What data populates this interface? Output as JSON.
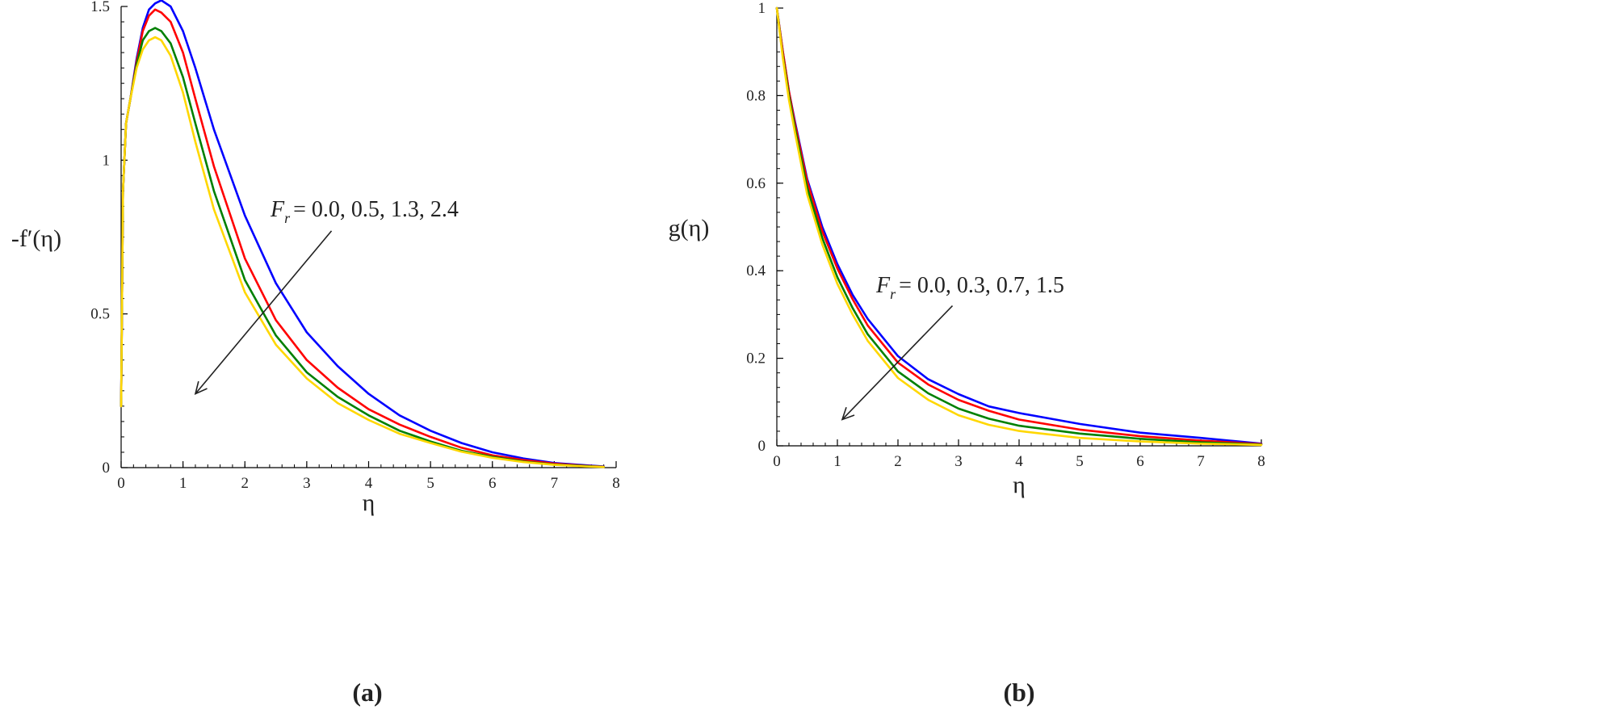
{
  "chart_data": [
    {
      "type": "line",
      "panel_label": "(a)",
      "xlabel": "η",
      "ylabel": "-f′(η)",
      "xlim": [
        0,
        8
      ],
      "ylim": [
        0,
        1.5
      ],
      "xticks": [
        "0",
        "1",
        "2",
        "3",
        "4",
        "5",
        "6",
        "7",
        "8"
      ],
      "yticks": [
        "0",
        "0.5",
        "1",
        "1.5"
      ],
      "grid": false,
      "legend": "none",
      "annotation": {
        "var": "F",
        "sub": "r",
        "values": "= 0.0, 0.5, 1.3, 2.4"
      },
      "arrow": {
        "from": [
          3.4,
          0.77
        ],
        "to": [
          1.2,
          0.24
        ]
      },
      "x": [
        0,
        0.03,
        0.08,
        0.15,
        0.25,
        0.35,
        0.45,
        0.55,
        0.65,
        0.8,
        1.0,
        1.2,
        1.5,
        2.0,
        2.5,
        3.0,
        3.5,
        4.0,
        4.5,
        5.0,
        5.5,
        6.0,
        6.5,
        7.0,
        7.5,
        7.8
      ],
      "series": [
        {
          "color": "#0000ff",
          "values": [
            0.2,
            0.9,
            1.12,
            1.2,
            1.33,
            1.43,
            1.49,
            1.51,
            1.52,
            1.5,
            1.42,
            1.3,
            1.1,
            0.82,
            0.6,
            0.44,
            0.33,
            0.24,
            0.17,
            0.12,
            0.08,
            0.05,
            0.03,
            0.015,
            0.008,
            0.004
          ]
        },
        {
          "color": "#ff0000",
          "values": [
            0.2,
            0.9,
            1.12,
            1.2,
            1.32,
            1.42,
            1.47,
            1.49,
            1.48,
            1.45,
            1.35,
            1.2,
            0.98,
            0.68,
            0.48,
            0.35,
            0.26,
            0.19,
            0.14,
            0.1,
            0.065,
            0.04,
            0.025,
            0.013,
            0.006,
            0.003
          ]
        },
        {
          "color": "#008000",
          "values": [
            0.2,
            0.9,
            1.12,
            1.2,
            1.31,
            1.39,
            1.42,
            1.43,
            1.42,
            1.38,
            1.27,
            1.12,
            0.9,
            0.61,
            0.43,
            0.31,
            0.23,
            0.17,
            0.12,
            0.085,
            0.055,
            0.035,
            0.02,
            0.01,
            0.005,
            0.002
          ]
        },
        {
          "color": "#ffd700",
          "values": [
            0.2,
            0.9,
            1.12,
            1.2,
            1.3,
            1.36,
            1.39,
            1.4,
            1.39,
            1.34,
            1.22,
            1.06,
            0.84,
            0.57,
            0.4,
            0.29,
            0.21,
            0.155,
            0.11,
            0.08,
            0.052,
            0.032,
            0.018,
            0.009,
            0.004,
            0.002
          ]
        }
      ]
    },
    {
      "type": "line",
      "panel_label": "(b)",
      "xlabel": "η",
      "ylabel": "g(η)",
      "xlim": [
        0,
        8
      ],
      "ylim": [
        0,
        1
      ],
      "xticks": [
        "0",
        "1",
        "2",
        "3",
        "4",
        "5",
        "6",
        "7",
        "8"
      ],
      "yticks": [
        "0",
        "0.2",
        "0.4",
        "0.6",
        "0.8",
        "1"
      ],
      "grid": false,
      "legend": "none",
      "annotation": {
        "var": "F",
        "sub": "r",
        "values": "= 0.0, 0.3, 0.7, 1.5"
      },
      "arrow": {
        "from": [
          2.9,
          0.32
        ],
        "to": [
          1.08,
          0.06
        ]
      },
      "x": [
        0,
        0.1,
        0.2,
        0.3,
        0.5,
        0.75,
        1.0,
        1.25,
        1.5,
        2.0,
        2.5,
        3.0,
        3.5,
        4.0,
        5.0,
        6.0,
        7.0,
        8.0
      ],
      "series": [
        {
          "color": "#0000ff",
          "values": [
            1.0,
            0.9,
            0.81,
            0.74,
            0.61,
            0.5,
            0.415,
            0.345,
            0.29,
            0.205,
            0.152,
            0.118,
            0.09,
            0.075,
            0.05,
            0.03,
            0.018,
            0.005
          ]
        },
        {
          "color": "#ff0000",
          "values": [
            1.0,
            0.9,
            0.81,
            0.735,
            0.605,
            0.49,
            0.405,
            0.335,
            0.275,
            0.19,
            0.14,
            0.105,
            0.08,
            0.06,
            0.037,
            0.022,
            0.012,
            0.004
          ]
        },
        {
          "color": "#008000",
          "values": [
            1.0,
            0.89,
            0.8,
            0.725,
            0.59,
            0.475,
            0.385,
            0.315,
            0.255,
            0.17,
            0.12,
            0.085,
            0.062,
            0.046,
            0.028,
            0.016,
            0.008,
            0.003
          ]
        },
        {
          "color": "#ffd700",
          "values": [
            1.0,
            0.885,
            0.79,
            0.715,
            0.575,
            0.46,
            0.37,
            0.3,
            0.24,
            0.155,
            0.105,
            0.07,
            0.048,
            0.034,
            0.018,
            0.01,
            0.005,
            0.002
          ]
        }
      ]
    }
  ]
}
